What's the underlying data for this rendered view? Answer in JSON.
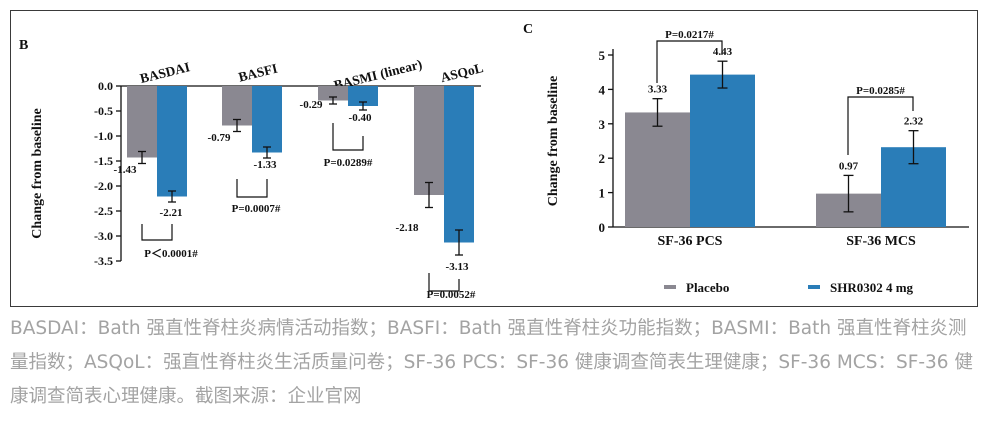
{
  "caption": "BASDAI：Bath 强直性脊柱炎病情活动指数；BASFI：Bath 强直性脊柱炎功能指数；BASMI：Bath 强直性脊柱炎测量指数；ASQoL：强直性脊柱炎生活质量问卷；SF-36 PCS：SF-36 健康调查简表生理健康；SF-36 MCS：SF-36 健康调查简表心理健康。截图来源：企业官网",
  "colors": {
    "placebo": "#8a8891",
    "drug": "#2a7db8"
  },
  "chart_data": [
    {
      "panel": "B",
      "type": "bar",
      "ylabel": "Change from baseline",
      "ylim": [
        -3.5,
        0.0
      ],
      "yticks": [
        "0.0",
        "-0.5",
        "-1.0",
        "-1.5",
        "-2.0",
        "-2.5",
        "-3.0",
        "-3.5"
      ],
      "categories": [
        "BASDAI",
        "BASFI",
        "BASMI (linear)",
        "ASQoL"
      ],
      "series": [
        {
          "name": "Placebo",
          "values": [
            -1.43,
            -0.79,
            -0.29,
            -2.18
          ],
          "errors": [
            0.12,
            0.12,
            0.07,
            0.25
          ],
          "labels": [
            "-1.43",
            "-0.79",
            "-0.29",
            "-2.18"
          ]
        },
        {
          "name": "SHR0302 4 mg",
          "values": [
            -2.21,
            -1.33,
            -0.4,
            -3.13
          ],
          "errors": [
            0.11,
            0.11,
            0.08,
            0.25
          ],
          "labels": [
            "-2.21",
            "-1.33",
            "-0.40",
            "-3.13"
          ]
        }
      ],
      "annotations": [
        "P＜0.0001#",
        "P=0.0007#",
        "P=0.0289#",
        "P=0.0052#"
      ]
    },
    {
      "panel": "C",
      "type": "bar",
      "ylabel": "Change from baseline",
      "ylim": [
        0,
        5
      ],
      "yticks": [
        "0",
        "1",
        "2",
        "3",
        "4",
        "5"
      ],
      "categories": [
        "SF-36 PCS",
        "SF-36 MCS"
      ],
      "series": [
        {
          "name": "Placebo",
          "values": [
            3.33,
            0.97
          ],
          "errors": [
            0.4,
            0.53
          ],
          "labels": [
            "3.33",
            "0.97"
          ]
        },
        {
          "name": "SHR0302 4 mg",
          "values": [
            4.43,
            2.32
          ],
          "errors": [
            0.39,
            0.48
          ],
          "labels": [
            "4.43",
            "2.32"
          ]
        }
      ],
      "annotations": [
        "P=0.0217#",
        "P=0.0285#"
      ]
    }
  ],
  "legend": [
    "Placebo",
    "SHR0302 4 mg"
  ]
}
